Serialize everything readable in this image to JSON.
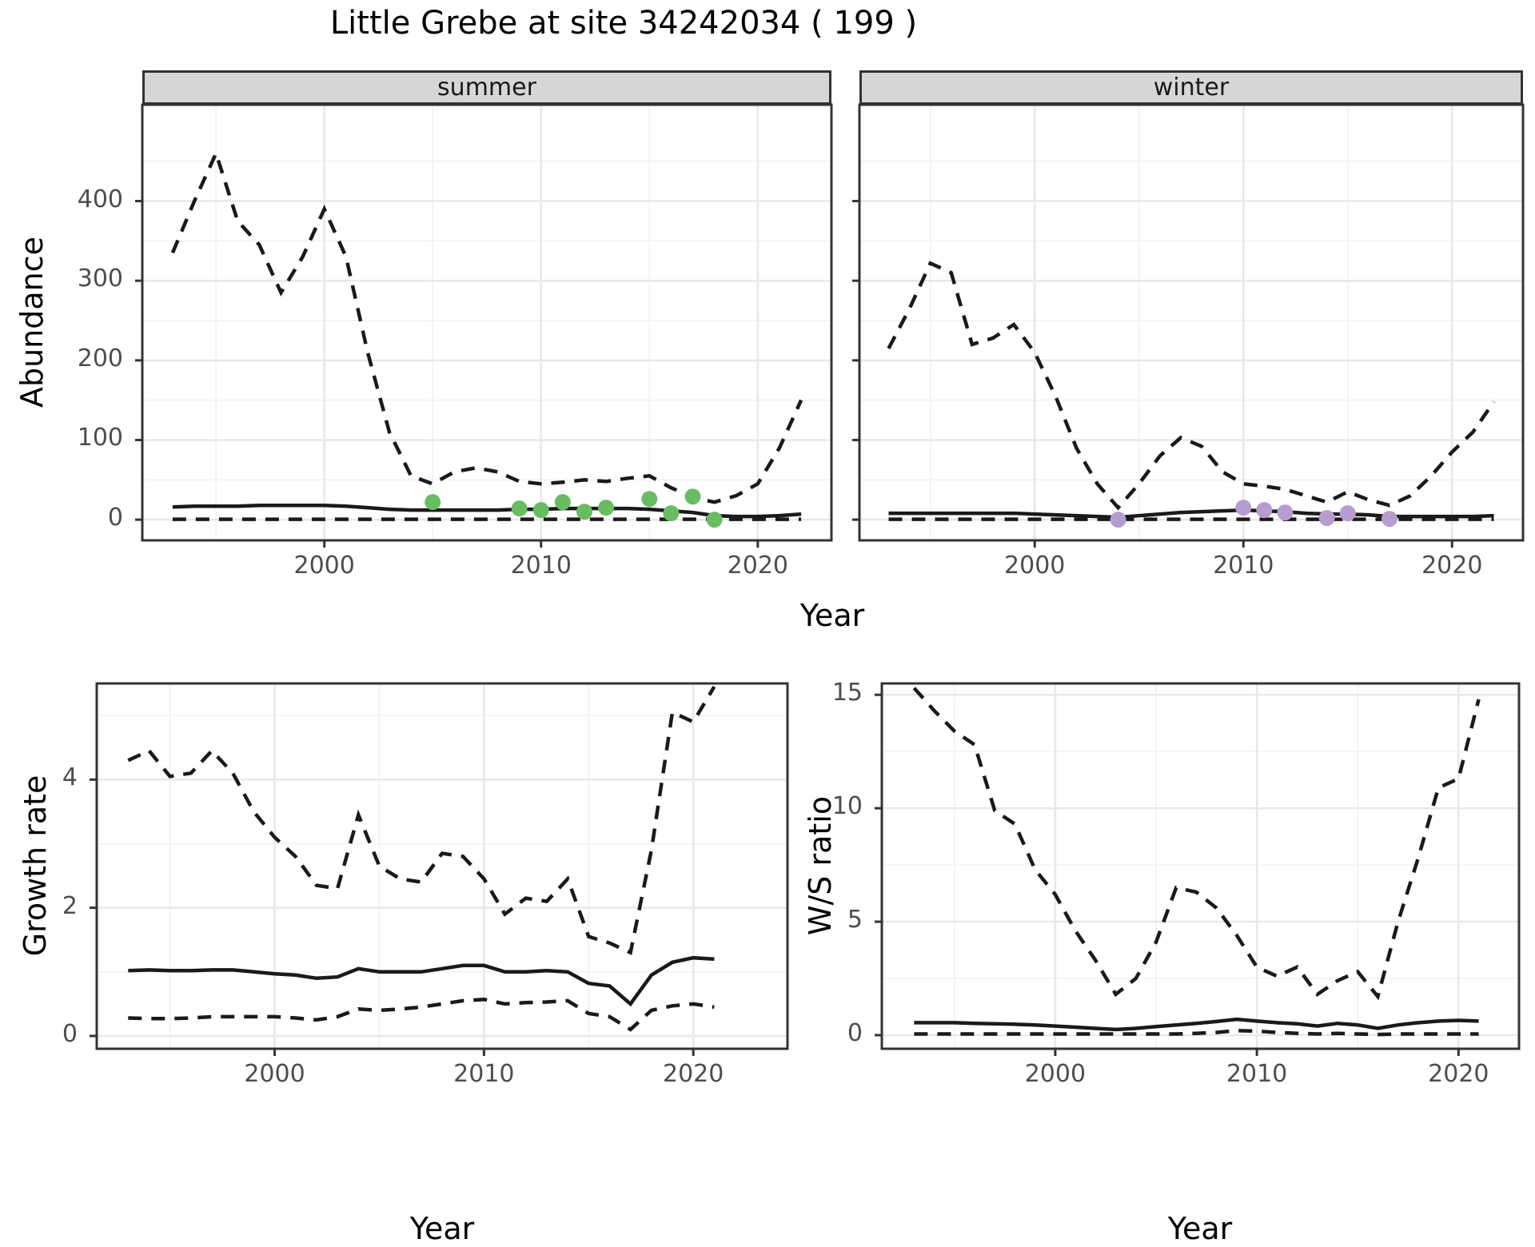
{
  "title": "Little Grebe at site 34242034 ( 199 )",
  "colors": {
    "summer_point": "#68bd62",
    "winter_point": "#b69cd0",
    "line": "#1a1a1a",
    "grid_major": "#e8e8e8",
    "grid_minor": "#f4f4f4",
    "strip_bg": "#d6d6d6",
    "panel_border": "#333333",
    "tick_mark": "#333333",
    "tick_label": "#4d4d4d"
  },
  "chart_data": [
    {
      "id": "abundance-summer",
      "type": "line",
      "facet_label": "summer",
      "xlabel": "Year",
      "ylabel": "Abundance",
      "x": [
        1993,
        1994,
        1995,
        1996,
        1997,
        1998,
        1999,
        2000,
        2001,
        2002,
        2003,
        2004,
        2005,
        2006,
        2007,
        2008,
        2009,
        2010,
        2011,
        2012,
        2013,
        2014,
        2015,
        2016,
        2017,
        2018,
        2019,
        2020,
        2021,
        2022
      ],
      "series": [
        {
          "name": "upper-ci",
          "style": "dashed",
          "values": [
            335,
            400,
            460,
            375,
            345,
            285,
            330,
            390,
            330,
            210,
            110,
            55,
            45,
            60,
            65,
            60,
            48,
            45,
            47,
            50,
            48,
            52,
            55,
            40,
            28,
            22,
            30,
            45,
            90,
            150
          ]
        },
        {
          "name": "median",
          "style": "solid",
          "values": [
            16,
            17,
            17,
            17,
            18,
            18,
            18,
            18,
            17,
            15,
            13,
            12,
            12,
            12,
            12,
            12,
            13,
            13,
            14,
            14,
            14,
            14,
            13,
            11,
            9,
            5,
            4,
            4,
            5,
            7
          ]
        },
        {
          "name": "lower-ci",
          "style": "dashed",
          "values": [
            0.5,
            0.5,
            0.5,
            0.5,
            0.5,
            0.5,
            0.5,
            0.5,
            0.5,
            0.5,
            0.5,
            0.5,
            0.5,
            0.5,
            0.5,
            0.5,
            0.5,
            0.5,
            0.5,
            0.5,
            0.5,
            0.5,
            0.5,
            0.5,
            0.5,
            0.5,
            0.5,
            0.5,
            0.5,
            0.5
          ]
        }
      ],
      "points": {
        "name": "summer-observations",
        "color_key": "summer_point",
        "data": [
          [
            2005,
            22
          ],
          [
            2009,
            14
          ],
          [
            2010,
            12
          ],
          [
            2011,
            22
          ],
          [
            2012,
            10
          ],
          [
            2013,
            15
          ],
          [
            2015,
            26
          ],
          [
            2016,
            8
          ],
          [
            2017,
            29
          ],
          [
            2018,
            0
          ]
        ]
      },
      "xticks": [
        2000,
        2010,
        2020
      ],
      "yticks": [
        0,
        100,
        200,
        300,
        400
      ],
      "xminor": [
        1995,
        2005,
        2015
      ],
      "yminor": [
        50,
        150,
        250,
        350,
        450
      ],
      "xlim": [
        1991.6,
        2023.4
      ],
      "ylim": [
        -26,
        521
      ],
      "grid": true,
      "legend": "none"
    },
    {
      "id": "abundance-winter",
      "type": "line",
      "facet_label": "winter",
      "xlabel": "Year",
      "ylabel": "Abundance",
      "x": [
        1993,
        1994,
        1995,
        1996,
        1997,
        1998,
        1999,
        2000,
        2001,
        2002,
        2003,
        2004,
        2005,
        2006,
        2007,
        2008,
        2009,
        2010,
        2011,
        2012,
        2013,
        2014,
        2015,
        2016,
        2017,
        2018,
        2019,
        2020,
        2021,
        2022
      ],
      "series": [
        {
          "name": "upper-ci",
          "style": "dashed",
          "values": [
            215,
            265,
            322,
            310,
            220,
            228,
            245,
            210,
            155,
            90,
            45,
            15,
            45,
            80,
            103,
            92,
            60,
            45,
            42,
            38,
            30,
            22,
            35,
            25,
            18,
            30,
            55,
            85,
            110,
            148
          ]
        },
        {
          "name": "median",
          "style": "solid",
          "values": [
            8,
            8,
            8,
            8,
            8,
            8,
            8,
            7,
            6,
            5,
            4,
            3,
            5,
            7,
            9,
            10,
            11,
            12,
            11,
            10,
            8,
            7,
            7,
            6,
            4,
            4,
            4,
            4,
            4,
            5
          ]
        },
        {
          "name": "lower-ci",
          "style": "dashed",
          "values": [
            0.5,
            0.5,
            0.5,
            0.5,
            0.5,
            0.5,
            0.5,
            0.5,
            0.5,
            0.5,
            0.5,
            0.5,
            0.5,
            0.5,
            0.5,
            0.5,
            0.5,
            0.5,
            0.5,
            0.5,
            0.5,
            0.5,
            0.5,
            0.5,
            0.5,
            0.5,
            0.5,
            0.5,
            0.5,
            0.5
          ]
        }
      ],
      "points": {
        "name": "winter-observations",
        "color_key": "winter_point",
        "data": [
          [
            2004,
            0
          ],
          [
            2010,
            15
          ],
          [
            2011,
            12
          ],
          [
            2012,
            9
          ],
          [
            2014,
            2
          ],
          [
            2015,
            8
          ],
          [
            2017,
            1
          ]
        ]
      },
      "xticks": [
        2000,
        2010,
        2020
      ],
      "yticks": [
        0,
        100,
        200,
        300,
        400
      ],
      "xminor": [
        1995,
        2005,
        2015
      ],
      "yminor": [
        50,
        150,
        250,
        350,
        450
      ],
      "xlim": [
        1991.6,
        2023.4
      ],
      "ylim": [
        -26,
        521
      ],
      "grid": true,
      "legend": "none"
    },
    {
      "id": "growth-rate",
      "type": "line",
      "facet_label": "",
      "xlabel": "Year",
      "ylabel": "Growth rate",
      "x": [
        1993,
        1994,
        1995,
        1996,
        1997,
        1998,
        1999,
        2000,
        2001,
        2002,
        2003,
        2004,
        2005,
        2006,
        2007,
        2008,
        2009,
        2010,
        2011,
        2012,
        2013,
        2014,
        2015,
        2016,
        2017,
        2018,
        2019,
        2020,
        2021
      ],
      "series": [
        {
          "name": "upper-ci",
          "style": "dashed",
          "values": [
            4.3,
            4.45,
            4.05,
            4.1,
            4.45,
            4.1,
            3.5,
            3.1,
            2.8,
            2.35,
            2.3,
            3.45,
            2.65,
            2.45,
            2.4,
            2.85,
            2.8,
            2.45,
            1.9,
            2.15,
            2.1,
            2.45,
            1.55,
            1.45,
            1.3,
            2.9,
            5.05,
            4.9,
            5.45
          ]
        },
        {
          "name": "median",
          "style": "solid",
          "values": [
            1.02,
            1.03,
            1.02,
            1.02,
            1.03,
            1.03,
            1.0,
            0.97,
            0.95,
            0.9,
            0.92,
            1.05,
            1.0,
            1.0,
            1.0,
            1.05,
            1.1,
            1.1,
            1.0,
            1.0,
            1.02,
            1.0,
            0.82,
            0.78,
            0.5,
            0.95,
            1.15,
            1.22,
            1.2
          ]
        },
        {
          "name": "lower-ci",
          "style": "dashed",
          "values": [
            0.28,
            0.27,
            0.27,
            0.28,
            0.3,
            0.3,
            0.3,
            0.3,
            0.28,
            0.25,
            0.3,
            0.42,
            0.4,
            0.42,
            0.45,
            0.5,
            0.55,
            0.57,
            0.5,
            0.52,
            0.53,
            0.55,
            0.35,
            0.3,
            0.1,
            0.4,
            0.47,
            0.5,
            0.45
          ]
        }
      ],
      "points": null,
      "xticks": [
        2000,
        2010,
        2020
      ],
      "yticks": [
        0,
        2,
        4
      ],
      "xminor": [
        1995,
        2005,
        2015
      ],
      "yminor": [
        1,
        3,
        5
      ],
      "xlim": [
        1991.5,
        2024.5
      ],
      "ylim": [
        -0.2,
        5.5
      ],
      "grid": true,
      "legend": "none"
    },
    {
      "id": "ws-ratio",
      "type": "line",
      "facet_label": "",
      "xlabel": "Year",
      "ylabel": "W/S ratio",
      "x": [
        1993,
        1994,
        1995,
        1996,
        1997,
        1998,
        1999,
        2000,
        2001,
        2002,
        2003,
        2004,
        2005,
        2006,
        2007,
        2008,
        2009,
        2010,
        2011,
        2012,
        2013,
        2014,
        2015,
        2016,
        2017,
        2018,
        2019,
        2020,
        2021
      ],
      "series": [
        {
          "name": "upper-ci",
          "style": "dashed",
          "values": [
            15.3,
            14.3,
            13.4,
            12.8,
            9.9,
            9.3,
            7.3,
            6.2,
            4.6,
            3.3,
            1.8,
            2.5,
            4.1,
            6.5,
            6.3,
            5.6,
            4.4,
            3.0,
            2.6,
            3.0,
            1.8,
            2.4,
            2.8,
            1.7,
            5.0,
            7.8,
            10.9,
            11.3,
            14.8
          ]
        },
        {
          "name": "median",
          "style": "solid",
          "values": [
            0.55,
            0.55,
            0.55,
            0.52,
            0.5,
            0.48,
            0.45,
            0.4,
            0.35,
            0.3,
            0.25,
            0.3,
            0.38,
            0.45,
            0.52,
            0.6,
            0.7,
            0.62,
            0.55,
            0.5,
            0.4,
            0.52,
            0.45,
            0.3,
            0.45,
            0.55,
            0.62,
            0.65,
            0.62
          ]
        },
        {
          "name": "lower-ci",
          "style": "dashed",
          "values": [
            0.05,
            0.05,
            0.05,
            0.05,
            0.05,
            0.05,
            0.05,
            0.05,
            0.05,
            0.05,
            0.05,
            0.05,
            0.05,
            0.05,
            0.08,
            0.12,
            0.2,
            0.18,
            0.12,
            0.08,
            0.05,
            0.08,
            0.05,
            0.03,
            0.05,
            0.05,
            0.05,
            0.05,
            0.05
          ]
        }
      ],
      "points": null,
      "xticks": [
        2000,
        2010,
        2020
      ],
      "yticks": [
        0,
        5,
        10,
        15
      ],
      "xminor": [
        1995,
        2005,
        2015
      ],
      "yminor": [
        2.5,
        7.5,
        12.5
      ],
      "xlim": [
        1991.4,
        2023.0
      ],
      "ylim": [
        -0.6,
        15.5
      ],
      "grid": true,
      "legend": "none"
    }
  ]
}
